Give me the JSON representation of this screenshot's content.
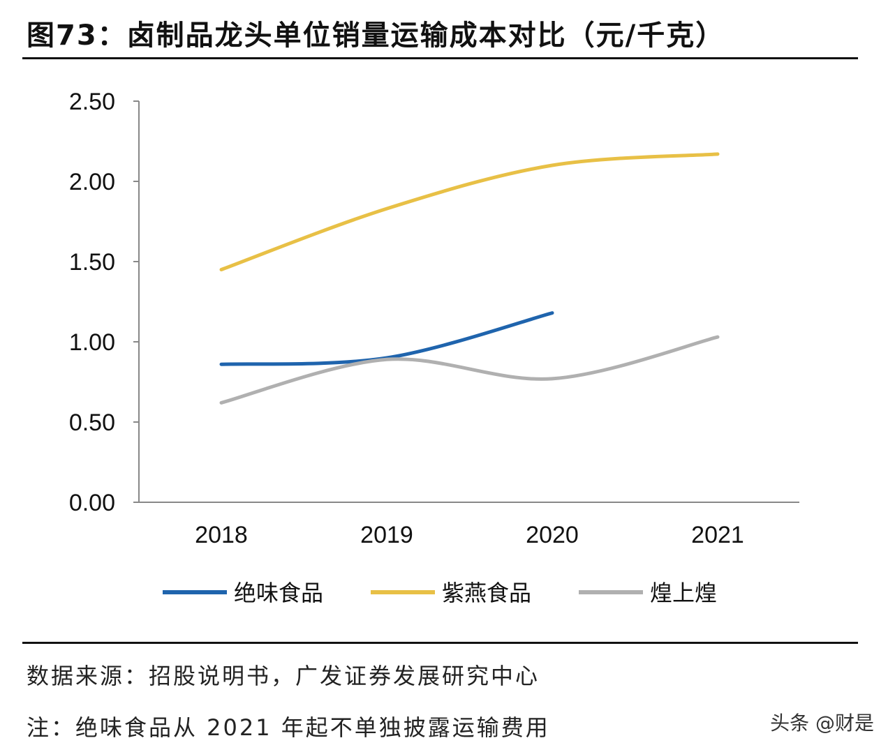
{
  "title": "图73：卤制品龙头单位销量运输成本对比（元/千克）",
  "source": "数据来源：招股说明书，广发证券发展研究中心",
  "note": "注：绝味食品从 2021 年起不单独披露运输费用",
  "watermark": "头条 @财是",
  "chart_data": {
    "type": "line",
    "title": "图73：卤制品龙头单位销量运输成本对比（元/千克）",
    "categories": [
      "2018",
      "2019",
      "2020",
      "2021"
    ],
    "ylim": [
      0,
      2.5
    ],
    "yticks": [
      "0.00",
      "0.50",
      "1.00",
      "1.50",
      "2.00",
      "2.50"
    ],
    "grid": false,
    "legend": "bottom",
    "series": [
      {
        "name": "绝味食品",
        "color": "#1f64ad",
        "values": [
          0.86,
          0.9,
          1.18,
          null
        ]
      },
      {
        "name": "紫燕食品",
        "color": "#e8c046",
        "values": [
          1.45,
          1.83,
          2.1,
          2.17
        ]
      },
      {
        "name": "煌上煌",
        "color": "#b0b0b0",
        "values": [
          0.62,
          0.89,
          0.77,
          1.03
        ]
      }
    ]
  }
}
